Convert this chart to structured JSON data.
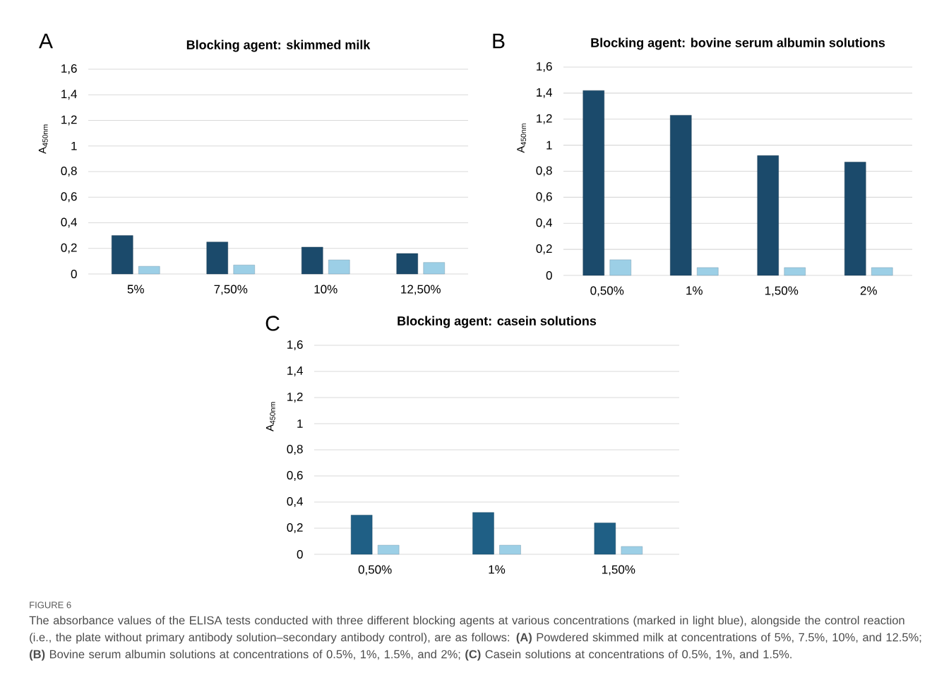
{
  "chart_data": [
    {
      "type": "bar",
      "title": "Blocking agent: skimmed milk",
      "ylabel": "A$_{450nm}$",
      "categories": [
        "5%",
        "7,50%",
        "10%",
        "12,50%"
      ],
      "series": [
        {
          "color": "#1b4a6b",
          "values": [
            0.3,
            0.25,
            0.21,
            0.16
          ]
        },
        {
          "color": "#9ccfe6",
          "values": [
            0.06,
            0.07,
            0.11,
            0.09
          ]
        }
      ],
      "ylim": [
        0,
        1.6
      ],
      "yticks": [
        0,
        {
          "value": 0.2,
          "label": "0,2"
        },
        {
          "value": 0.4,
          "label": "0,4"
        },
        {
          "value": 0.6,
          "label": "0,6"
        },
        {
          "value": 0.8,
          "label": "0,8"
        },
        1,
        {
          "value": 1.2,
          "label": "1,2"
        },
        {
          "value": 1.4,
          "label": "1,4"
        },
        {
          "value": 1.6,
          "label": "1,6"
        }
      ],
      "grid": "y",
      "annotations": [
        "A"
      ]
    },
    {
      "type": "bar",
      "title": "Blocking agent: bovine serum albumin solutions",
      "ylabel": "A$_{450nm}$",
      "categories": [
        "0,50%",
        "1%",
        "1,50%",
        "2%"
      ],
      "series": [
        {
          "color": "#1b4a6b",
          "values": [
            1.42,
            1.23,
            0.92,
            0.87
          ]
        },
        {
          "color": "#9ccfe6",
          "values": [
            0.12,
            0.06,
            0.06,
            0.06
          ]
        }
      ],
      "ylim": [
        0,
        1.6
      ],
      "yticks": [
        0,
        {
          "value": 0.2,
          "label": "0,2"
        },
        {
          "value": 0.4,
          "label": "0,4"
        },
        {
          "value": 0.6,
          "label": "0,6"
        },
        {
          "value": 0.8,
          "label": "0,8"
        },
        1,
        {
          "value": 1.2,
          "label": "1,2"
        },
        {
          "value": 1.4,
          "label": "1,4"
        },
        {
          "value": 1.6,
          "label": "1,6"
        }
      ],
      "grid": "y",
      "annotations": [
        "B"
      ]
    },
    {
      "type": "bar",
      "title": "Blocking agent: casein solutions",
      "ylabel": "A$_{450nm}$",
      "categories": [
        "0,50%",
        "1%",
        "1,50%"
      ],
      "series": [
        {
          "color": "#1f5f85",
          "values": [
            0.3,
            0.32,
            0.24
          ]
        },
        {
          "color": "#9ccfe6",
          "values": [
            0.07,
            0.07,
            0.06
          ]
        }
      ],
      "ylim": [
        0,
        1.6
      ],
      "yticks": [
        0,
        {
          "value": 0.2,
          "label": "0,2"
        },
        {
          "value": 0.4,
          "label": "0,4"
        },
        {
          "value": 0.6,
          "label": "0,6"
        },
        {
          "value": 0.8,
          "label": "0,8"
        },
        1,
        {
          "value": 1.2,
          "label": "1,2"
        },
        {
          "value": 1.4,
          "label": "1,4"
        },
        {
          "value": 1.6,
          "label": "1,6"
        }
      ],
      "grid": "y",
      "annotations": [
        "C",
        "FIGURE 6",
        "The absorbance values of the ELISA tests conducted with three different blocking agents at various concentrations (marked in light blue), alongside the control reaction (i.e., the plate without primary antibody solution–secondary antibody control), are as follows: **(A)** Powdered skimmed milk at concentrations of 5%, 7.5%, 10%, and 12.5%; **(B)** Bovine serum albumin solutions at concentrations of 0.5%, 1%, 1.5%, and 2%; **(C)** Casein solutions at concentrations of 0.5%, 1%, and 1.5%."
      ]
    }
  ]
}
